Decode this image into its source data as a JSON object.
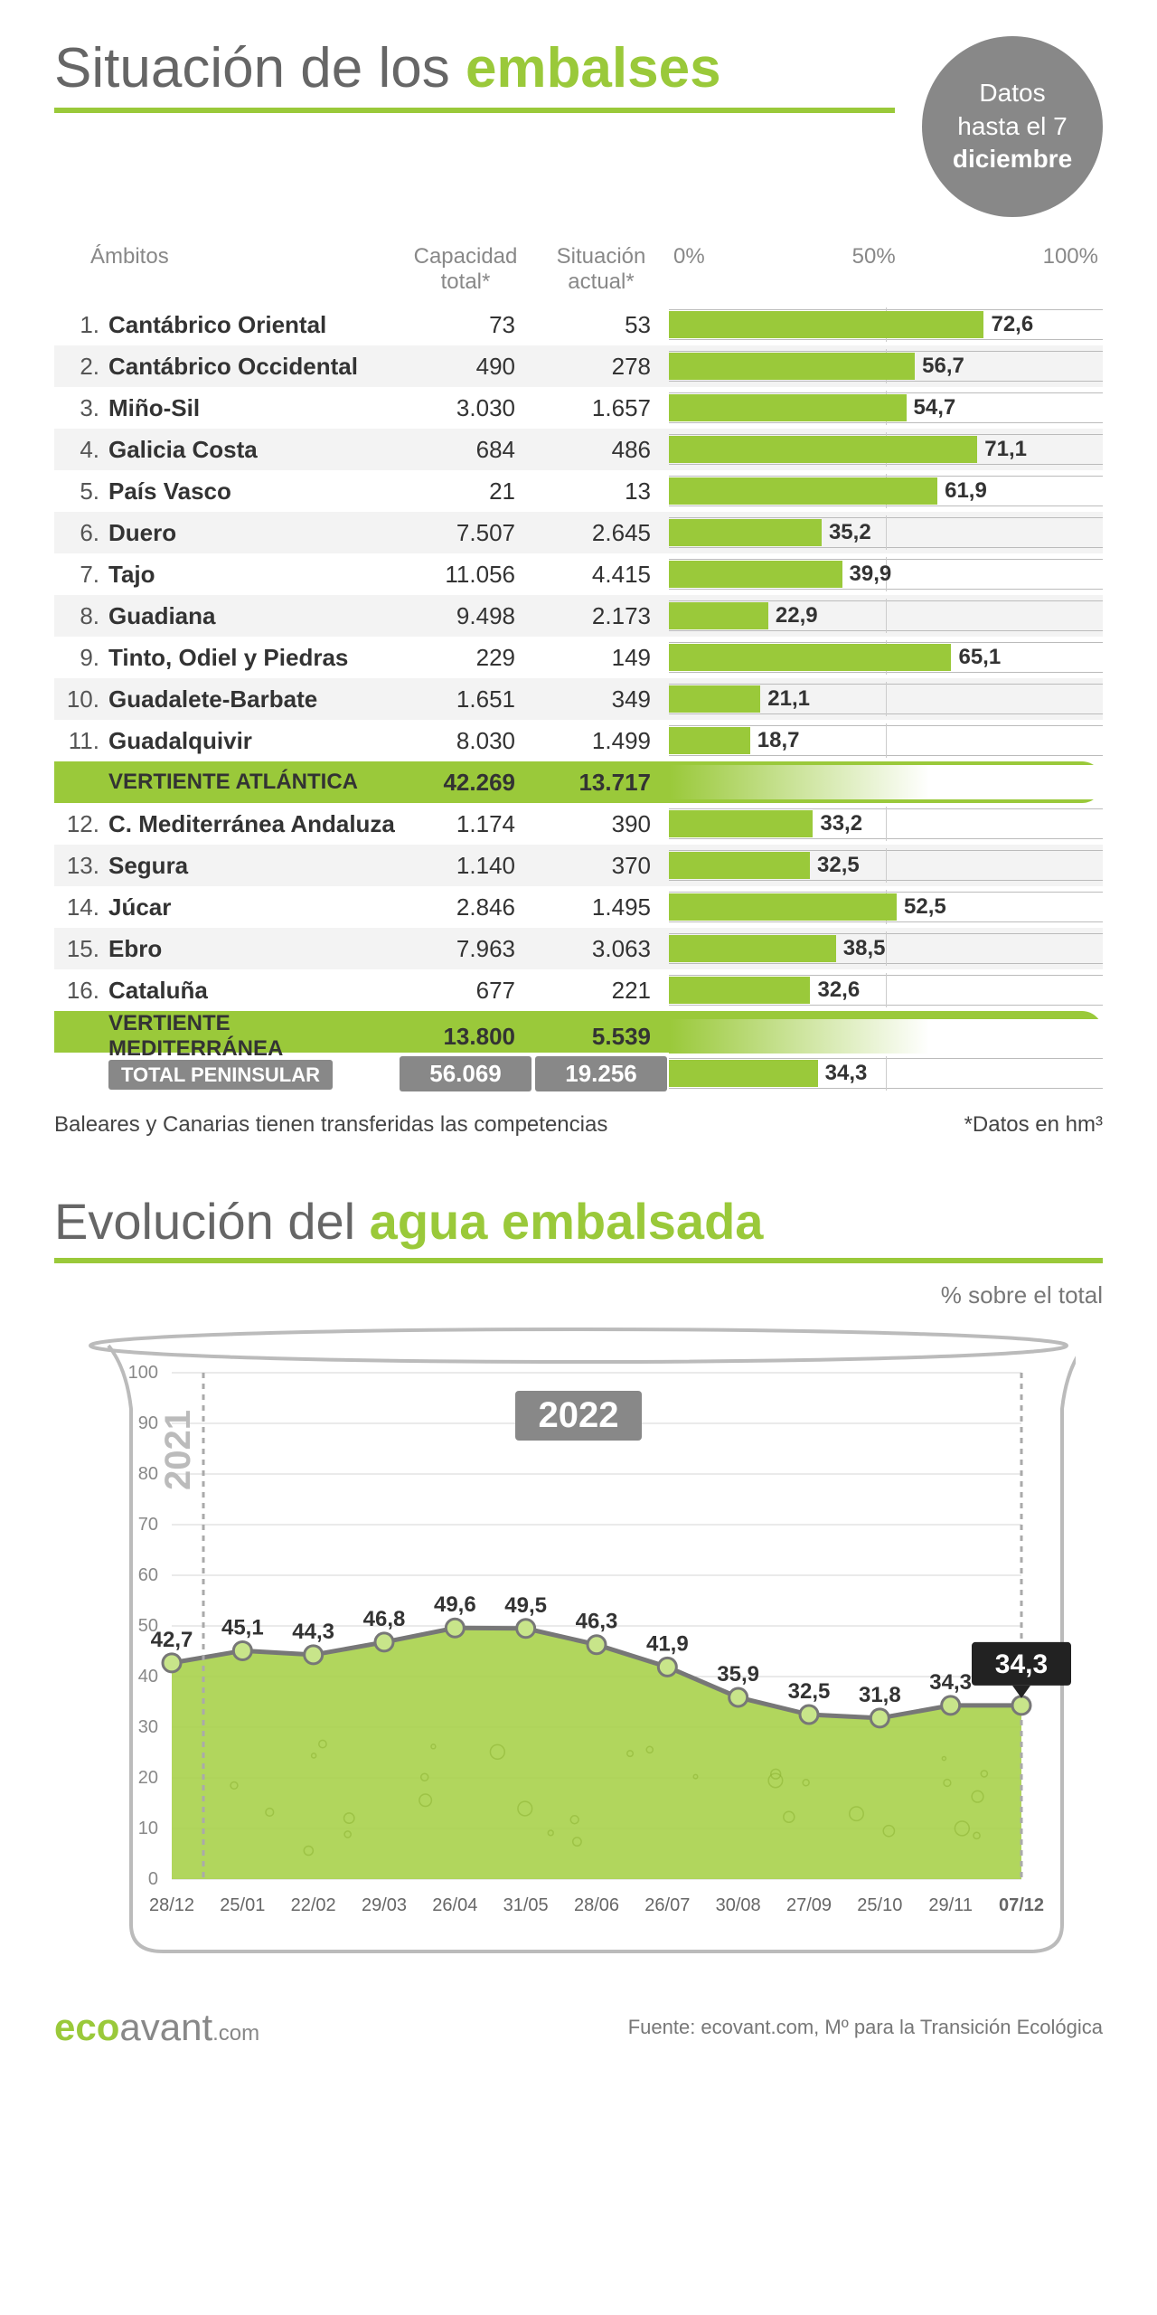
{
  "title_pre": "Situación de los ",
  "title_accent": "embalses",
  "date_badge": {
    "line1": "Datos",
    "line2": "hasta el 7",
    "line3": "diciembre"
  },
  "headers": {
    "ambitos": "Ámbitos",
    "capacidad": "Capacidad total*",
    "situacion": "Situación actual*"
  },
  "scale": {
    "p0": "0%",
    "p50": "50%",
    "p100": "100%"
  },
  "rows": [
    {
      "n": "1.",
      "name": "Cantábrico Oriental",
      "cap": "73",
      "sit": "53",
      "pct": 72.6,
      "pct_label": "72,6"
    },
    {
      "n": "2.",
      "name": "Cantábrico Occidental",
      "cap": "490",
      "sit": "278",
      "pct": 56.7,
      "pct_label": "56,7"
    },
    {
      "n": "3.",
      "name": "Miño-Sil",
      "cap": "3.030",
      "sit": "1.657",
      "pct": 54.7,
      "pct_label": "54,7"
    },
    {
      "n": "4.",
      "name": "Galicia Costa",
      "cap": "684",
      "sit": "486",
      "pct": 71.1,
      "pct_label": "71,1"
    },
    {
      "n": "5.",
      "name": "País Vasco",
      "cap": "21",
      "sit": "13",
      "pct": 61.9,
      "pct_label": "61,9"
    },
    {
      "n": "6.",
      "name": "Duero",
      "cap": "7.507",
      "sit": "2.645",
      "pct": 35.2,
      "pct_label": "35,2"
    },
    {
      "n": "7.",
      "name": "Tajo",
      "cap": "11.056",
      "sit": "4.415",
      "pct": 39.9,
      "pct_label": "39,9"
    },
    {
      "n": "8.",
      "name": "Guadiana",
      "cap": "9.498",
      "sit": "2.173",
      "pct": 22.9,
      "pct_label": "22,9"
    },
    {
      "n": "9.",
      "name": "Tinto, Odiel y Piedras",
      "cap": "229",
      "sit": "149",
      "pct": 65.1,
      "pct_label": "65,1"
    },
    {
      "n": "10.",
      "name": "Guadalete-Barbate",
      "cap": "1.651",
      "sit": "349",
      "pct": 21.1,
      "pct_label": "21,1"
    },
    {
      "n": "11.",
      "name": "Guadalquivir",
      "cap": "8.030",
      "sit": "1.499",
      "pct": 18.7,
      "pct_label": "18,7"
    }
  ],
  "subtotal1": {
    "name": "VERTIENTE ATLÁNTICA",
    "cap": "42.269",
    "sit": "13.717"
  },
  "rows2": [
    {
      "n": "12.",
      "name": "C. Mediterránea Andaluza",
      "cap": "1.174",
      "sit": "390",
      "pct": 33.2,
      "pct_label": "33,2"
    },
    {
      "n": "13.",
      "name": "Segura",
      "cap": "1.140",
      "sit": "370",
      "pct": 32.5,
      "pct_label": "32,5"
    },
    {
      "n": "14.",
      "name": "Júcar",
      "cap": "2.846",
      "sit": "1.495",
      "pct": 52.5,
      "pct_label": "52,5"
    },
    {
      "n": "15.",
      "name": "Ebro",
      "cap": "7.963",
      "sit": "3.063",
      "pct": 38.5,
      "pct_label": "38,5"
    },
    {
      "n": "16.",
      "name": "Cataluña",
      "cap": "677",
      "sit": "221",
      "pct": 32.6,
      "pct_label": "32,6"
    }
  ],
  "subtotal2": {
    "name": "VERTIENTE MEDITERRÁNEA",
    "cap": "13.800",
    "sit": "5.539"
  },
  "total": {
    "name": "TOTAL PENINSULAR",
    "cap": "56.069",
    "sit": "19.256",
    "pct": 34.3,
    "pct_label": "34,3"
  },
  "footnote_left": "Baleares y Canarias tienen transferidas las competencias",
  "footnote_right": "*Datos en hm³",
  "section2_title_pre": "Evolución del ",
  "section2_title_accent": "agua embalsada",
  "chart_sub": "% sobre el total",
  "evolution": {
    "ylim": [
      0,
      100
    ],
    "ytick_step": 10,
    "year_labels": {
      "y2021": "2021",
      "y2022": "2022"
    },
    "final_badge": "34,3",
    "xlabels": [
      "28/12",
      "25/01",
      "22/02",
      "29/03",
      "26/04",
      "31/05",
      "28/06",
      "26/07",
      "30/08",
      "27/09",
      "25/10",
      "29/11",
      "07/12"
    ],
    "values": [
      42.7,
      45.1,
      44.3,
      46.8,
      49.6,
      49.5,
      46.3,
      41.9,
      35.9,
      32.5,
      31.8,
      34.3,
      34.3
    ],
    "point_labels": [
      "42,7",
      "45,1",
      "44,3",
      "46,8",
      "49,6",
      "49,5",
      "46,3",
      "41,9",
      "35,9",
      "32,5",
      "31,8",
      "34,3",
      ""
    ],
    "area_color": "#a8d14b",
    "line_color": "#777",
    "marker_fill": "#c8e58a",
    "marker_stroke": "#777",
    "grid_color": "#d5d5d5",
    "background": "#ffffff",
    "tank_stroke": "#bbb"
  },
  "colors": {
    "accent": "#9ac93a",
    "bar_fill": "#9ac93a"
  },
  "logo": {
    "eco": "eco",
    "avant": "avant",
    "dom": ".com"
  },
  "source": "Fuente: ecovant.com, Mº para la Transición Ecológica"
}
